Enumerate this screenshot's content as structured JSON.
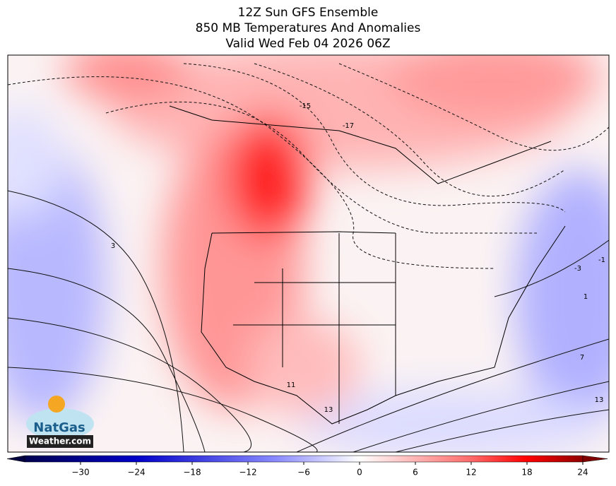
{
  "header": {
    "title": [
      "12Z Sun GFS Ensemble",
      "850 MB Temperatures And Anomalies",
      "Valid Wed Feb 04 2026 06Z"
    ]
  },
  "map": {
    "contour_labels": [
      3,
      -3,
      -1,
      1,
      7,
      13,
      -15,
      -17,
      13,
      11
    ]
  },
  "colorbar": {
    "range": [
      -36,
      24
    ],
    "ticks": [
      {
        "value": -30,
        "label": "−30"
      },
      {
        "value": -24,
        "label": "−24"
      },
      {
        "value": -18,
        "label": "−18"
      },
      {
        "value": -12,
        "label": "−12"
      },
      {
        "value": -6,
        "label": "−6"
      },
      0,
      6,
      12,
      18,
      24
    ]
  },
  "logo": {
    "name": "NatGas",
    "site": "Weather.com"
  }
}
